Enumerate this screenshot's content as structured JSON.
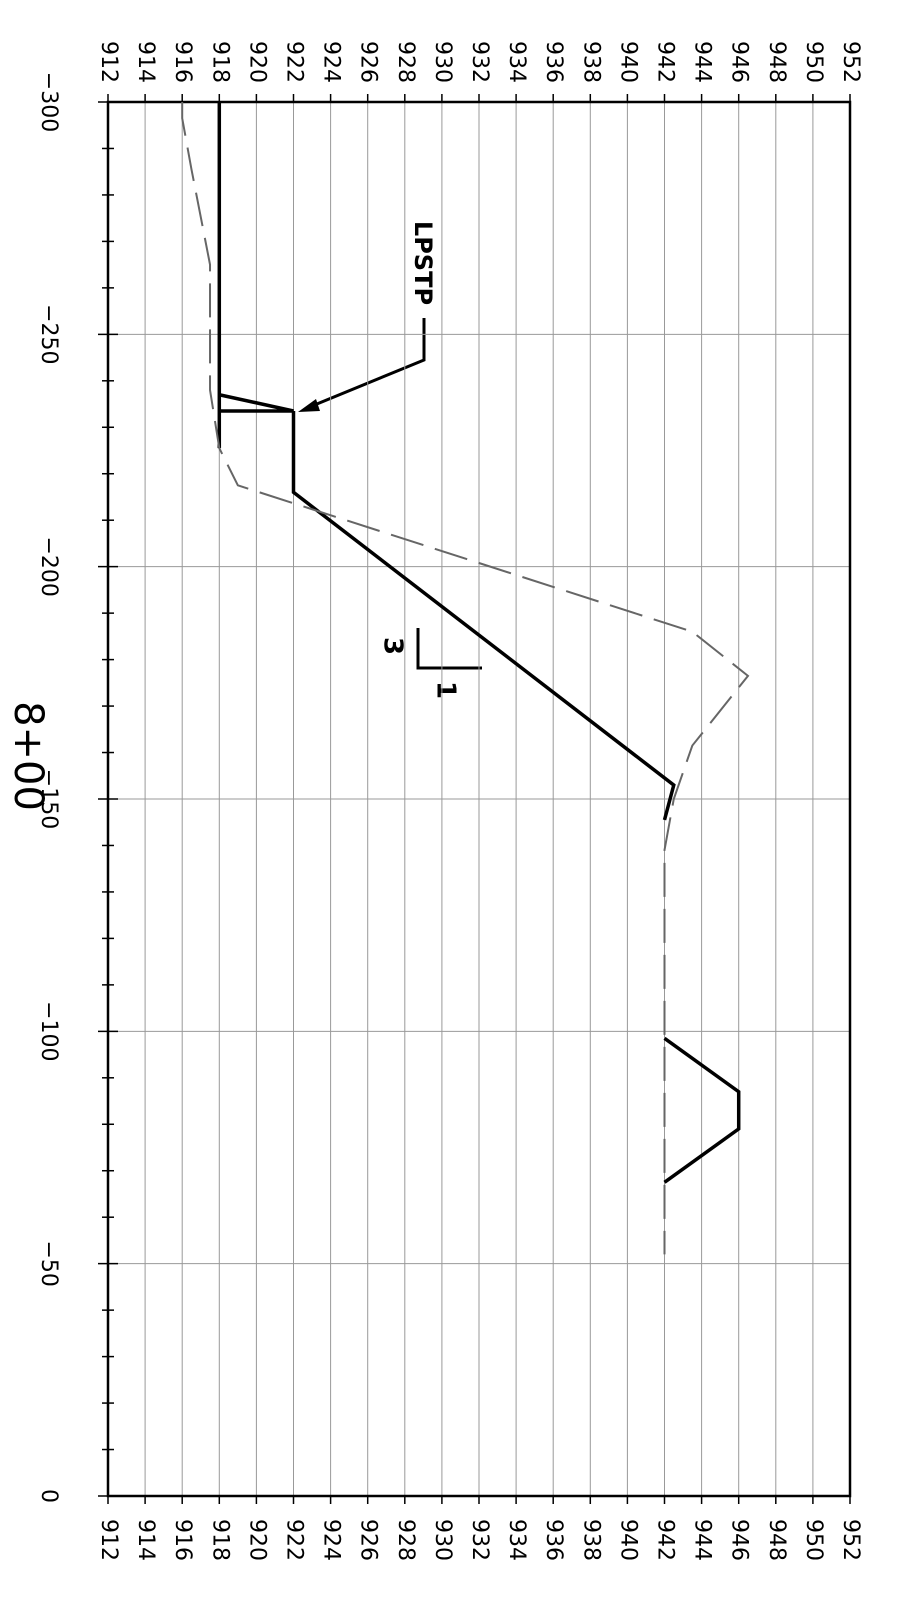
{
  "chart_data": {
    "type": "line",
    "station": "8+00",
    "annotations": [
      {
        "text": "LPSTP"
      },
      {
        "text": "3"
      },
      {
        "text": "1"
      }
    ],
    "xlim": [
      -300,
      0
    ],
    "xticks": [
      {
        "value": -300,
        "label": "−300"
      },
      {
        "value": -250,
        "label": "−250"
      },
      {
        "value": -200,
        "label": "−200"
      },
      {
        "value": -150,
        "label": "−150"
      },
      {
        "value": -100,
        "label": "−100"
      },
      {
        "value": -50,
        "label": "−50"
      },
      0
    ],
    "x_minor_ticks": [
      -290,
      -280,
      -270,
      -260,
      -240,
      -230,
      -220,
      -210,
      -190,
      -180,
      -170,
      -160,
      -140,
      -130,
      -120,
      -110,
      -90,
      -80,
      -70,
      -60,
      -40,
      -30,
      -20,
      -10
    ],
    "ylim": [
      912,
      952
    ],
    "yticks": [
      912,
      914,
      916,
      918,
      920,
      922,
      924,
      926,
      928,
      930,
      932,
      934,
      936,
      938,
      940,
      942,
      944,
      946,
      948,
      950,
      952
    ],
    "grid": true,
    "series": [
      {
        "color": "#000000",
        "dashed": false,
        "x": [
          -300,
          -225.5,
          null,
          -237,
          -233.5,
          -233.5,
          null,
          -233.5,
          -216,
          -153,
          -145.5,
          null,
          -98.5,
          -87,
          -79,
          -67.5
        ],
        "values": [
          918,
          918,
          null,
          918,
          922,
          918,
          null,
          922,
          922,
          942.5,
          942,
          null,
          942,
          946,
          946,
          942
        ]
      },
      {
        "color": "#666666",
        "dashed": true,
        "x": [
          -300,
          -296.5,
          -285.5,
          -265,
          -238,
          -225.5,
          -217.5,
          -186,
          -176.5,
          -161.5,
          -150,
          -139,
          -52
        ],
        "values": [
          916,
          916,
          916.5,
          917.5,
          917.5,
          918,
          919,
          943.5,
          946.5,
          943.5,
          942.5,
          942,
          942
        ]
      }
    ]
  }
}
